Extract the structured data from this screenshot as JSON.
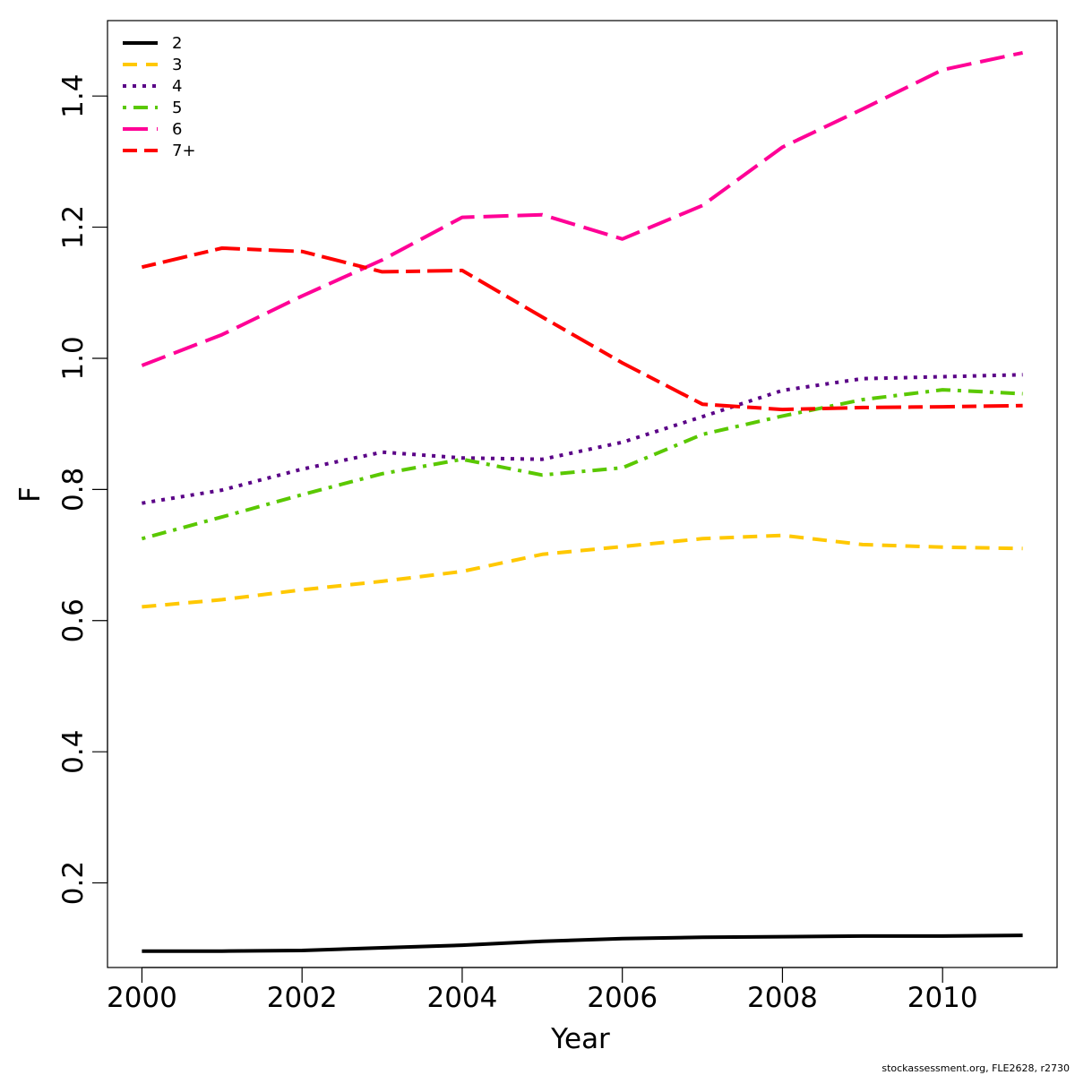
{
  "chart_data": {
    "type": "line",
    "xlabel": "Year",
    "ylabel": "F",
    "xlim": [
      1999.57,
      2011.43
    ],
    "ylim": [
      0.071,
      1.515
    ],
    "x_ticks": [
      2000,
      2002,
      2004,
      2006,
      2008,
      2010
    ],
    "y_ticks": [
      0.2,
      0.4,
      0.6,
      0.8,
      1.0,
      1.2,
      1.4
    ],
    "grid": false,
    "legend_position": "top-left",
    "x": [
      2000,
      2001,
      2002,
      2003,
      2004,
      2005,
      2006,
      2007,
      2008,
      2009,
      2010,
      2011
    ],
    "series": [
      {
        "name": "2",
        "color": "#000000",
        "dash": "solid",
        "values": [
          0.096,
          0.096,
          0.097,
          0.101,
          0.105,
          0.111,
          0.115,
          0.117,
          0.118,
          0.119,
          0.119,
          0.12
        ]
      },
      {
        "name": "3",
        "color": "#ffc800",
        "dash": "dashed",
        "values": [
          0.621,
          0.632,
          0.647,
          0.66,
          0.675,
          0.701,
          0.713,
          0.725,
          0.73,
          0.716,
          0.712,
          0.71
        ]
      },
      {
        "name": "4",
        "color": "#5a0087",
        "dash": "dotted",
        "values": [
          0.779,
          0.799,
          0.831,
          0.857,
          0.848,
          0.846,
          0.872,
          0.911,
          0.951,
          0.969,
          0.972,
          0.975
        ]
      },
      {
        "name": "5",
        "color": "#5ac800",
        "dash": "dotdash",
        "values": [
          0.725,
          0.758,
          0.792,
          0.824,
          0.846,
          0.822,
          0.833,
          0.884,
          0.912,
          0.937,
          0.952,
          0.946
        ]
      },
      {
        "name": "6",
        "color": "#ff0096",
        "dash": "longdash",
        "values": [
          0.989,
          1.036,
          1.095,
          1.15,
          1.215,
          1.219,
          1.182,
          1.233,
          1.322,
          1.38,
          1.44,
          1.466
        ]
      },
      {
        "name": "7+",
        "color": "#ff0000",
        "dash": "twodash",
        "values": [
          1.139,
          1.168,
          1.163,
          1.132,
          1.134,
          1.063,
          0.993,
          0.93,
          0.922,
          0.925,
          0.926,
          0.928
        ]
      }
    ]
  },
  "credit": "stockassessment.org, FLE2628, r2730"
}
